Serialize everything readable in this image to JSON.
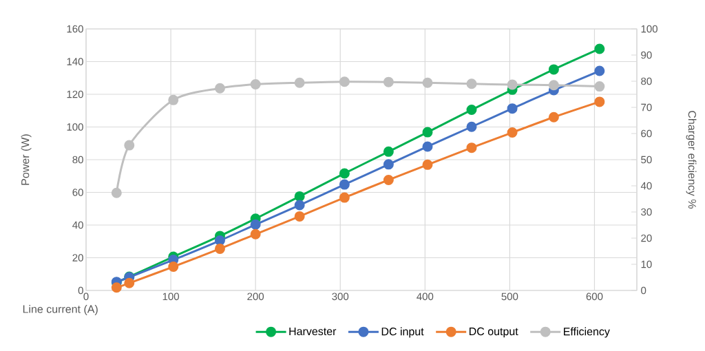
{
  "chart_data": {
    "type": "line",
    "xlabel": "Line current (A)",
    "ylabel": "Power (W)",
    "y2label": "Charger eficiency %",
    "x": [
      36,
      51,
      103,
      158,
      200,
      252,
      305,
      357,
      403,
      455,
      503,
      552,
      606
    ],
    "series": [
      {
        "name": "Harvester",
        "color": "#00b050",
        "values": [
          4.9,
          8.4,
          20.6,
          33.3,
          43.9,
          57.5,
          71.6,
          84.9,
          96.8,
          110.5,
          122.8,
          135.2,
          147.8
        ]
      },
      {
        "name": "DC input",
        "color": "#4472c4",
        "values": [
          5.2,
          8.1,
          18.7,
          30.5,
          40.3,
          52.2,
          64.8,
          77.1,
          88.0,
          100.1,
          111.3,
          122.5,
          134.3
        ]
      },
      {
        "name": "DC output",
        "color": "#ed7d31",
        "values": [
          1.8,
          4.5,
          14.5,
          25.5,
          34.4,
          45.3,
          56.8,
          67.6,
          76.9,
          87.3,
          96.6,
          106,
          115.4
        ]
      },
      {
        "name": "Efficiency",
        "color": "#bfbfbf",
        "axis": "y2",
        "values": [
          37.3,
          55.5,
          72.8,
          77.3,
          78.8,
          79.4,
          79.8,
          79.7,
          79.4,
          79.0,
          78.7,
          78.5,
          78.0
        ]
      }
    ],
    "xlim": [
      0,
      650
    ],
    "xticks": [
      0,
      100,
      200,
      300,
      400,
      500,
      600
    ],
    "ylim": [
      0,
      160
    ],
    "yticks": [
      0,
      20,
      40,
      60,
      80,
      100,
      120,
      140,
      160
    ],
    "y2lim": [
      0,
      100
    ],
    "y2ticks": [
      0,
      10,
      20,
      30,
      40,
      50,
      60,
      70,
      80,
      90,
      100
    ],
    "grid": true,
    "legend": "bottom",
    "marker": "circle",
    "line_style": "solid"
  }
}
